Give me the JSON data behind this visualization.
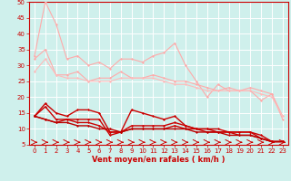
{
  "xlabel": "Vent moyen/en rafales ( km/h )",
  "xlim": [
    -0.5,
    23.5
  ],
  "ylim": [
    5,
    50
  ],
  "yticks": [
    5,
    10,
    15,
    20,
    25,
    30,
    35,
    40,
    45,
    50
  ],
  "xticks": [
    0,
    1,
    2,
    3,
    4,
    5,
    6,
    7,
    8,
    9,
    10,
    11,
    12,
    13,
    14,
    15,
    16,
    17,
    18,
    19,
    20,
    21,
    22,
    23
  ],
  "background_color": "#cff0ec",
  "grid_color": "#ffffff",
  "series": [
    {
      "x": [
        0,
        1,
        2,
        3,
        4,
        5,
        6,
        7,
        8,
        9,
        10,
        11,
        12,
        13,
        14,
        15,
        16,
        17,
        18,
        19,
        20,
        21,
        22,
        23
      ],
      "y": [
        33,
        50,
        43,
        32,
        33,
        30,
        31,
        29,
        32,
        32,
        31,
        33,
        34,
        37,
        30,
        25,
        20,
        24,
        22,
        22,
        22,
        19,
        21,
        13
      ],
      "color": "#ffaaaa",
      "lw": 0.8,
      "marker": "D",
      "ms": 1.5
    },
    {
      "x": [
        0,
        1,
        2,
        3,
        4,
        5,
        6,
        7,
        8,
        9,
        10,
        11,
        12,
        13,
        14,
        15,
        16,
        17,
        18,
        19,
        20,
        21,
        22,
        23
      ],
      "y": [
        32,
        35,
        27,
        27,
        28,
        25,
        26,
        26,
        28,
        26,
        26,
        27,
        26,
        25,
        25,
        24,
        23,
        22,
        23,
        22,
        23,
        22,
        21,
        14
      ],
      "color": "#ffaaaa",
      "lw": 0.8,
      "marker": "D",
      "ms": 1.5
    },
    {
      "x": [
        0,
        1,
        2,
        3,
        4,
        5,
        6,
        7,
        8,
        9,
        10,
        11,
        12,
        13,
        14,
        15,
        16,
        17,
        18,
        19,
        20,
        21,
        22,
        23
      ],
      "y": [
        28,
        32,
        27,
        26,
        26,
        25,
        25,
        25,
        26,
        26,
        26,
        26,
        25,
        24,
        24,
        23,
        22,
        22,
        22,
        22,
        22,
        21,
        20,
        14
      ],
      "color": "#ffbbbb",
      "lw": 0.8,
      "marker": "D",
      "ms": 1.5
    },
    {
      "x": [
        0,
        1,
        2,
        3,
        4,
        5,
        6,
        7,
        8,
        9,
        10,
        11,
        12,
        13,
        14,
        15,
        16,
        17,
        18,
        19,
        20,
        21,
        22,
        23
      ],
      "y": [
        14,
        18,
        15,
        14,
        16,
        16,
        15,
        9,
        9,
        16,
        15,
        14,
        13,
        14,
        11,
        10,
        10,
        10,
        9,
        9,
        9,
        8,
        6,
        6
      ],
      "color": "#cc0000",
      "lw": 1.0,
      "marker": "D",
      "ms": 1.5
    },
    {
      "x": [
        0,
        1,
        2,
        3,
        4,
        5,
        6,
        7,
        8,
        9,
        10,
        11,
        12,
        13,
        14,
        15,
        16,
        17,
        18,
        19,
        20,
        21,
        22,
        23
      ],
      "y": [
        14,
        17,
        13,
        13,
        13,
        13,
        13,
        8,
        9,
        11,
        11,
        11,
        11,
        12,
        11,
        10,
        10,
        9,
        9,
        9,
        9,
        7,
        6,
        6
      ],
      "color": "#cc0000",
      "lw": 1.0,
      "marker": "D",
      "ms": 1.5
    },
    {
      "x": [
        0,
        1,
        2,
        3,
        4,
        5,
        6,
        7,
        8,
        9,
        10,
        11,
        12,
        13,
        14,
        15,
        16,
        17,
        18,
        19,
        20,
        21,
        22,
        23
      ],
      "y": [
        14,
        13,
        12,
        13,
        12,
        12,
        11,
        9,
        9,
        10,
        10,
        10,
        10,
        11,
        10,
        10,
        9,
        9,
        9,
        8,
        8,
        7,
        6,
        6
      ],
      "color": "#cc0000",
      "lw": 1.0,
      "marker": "D",
      "ms": 1.5
    },
    {
      "x": [
        0,
        1,
        2,
        3,
        4,
        5,
        6,
        7,
        8,
        9,
        10,
        11,
        12,
        13,
        14,
        15,
        16,
        17,
        18,
        19,
        20,
        21,
        22,
        23
      ],
      "y": [
        14,
        13,
        12,
        12,
        11,
        11,
        10,
        10,
        9,
        10,
        10,
        10,
        10,
        10,
        10,
        9,
        9,
        9,
        8,
        8,
        8,
        7,
        6,
        6
      ],
      "color": "#bb0000",
      "lw": 1.0,
      "marker": "D",
      "ms": 1.5
    }
  ],
  "arrows": {
    "x": [
      0,
      1,
      2,
      3,
      4,
      5,
      6,
      7,
      8,
      9,
      10,
      11,
      12,
      13,
      14,
      15,
      16,
      17,
      18,
      19,
      20,
      21,
      22,
      23
    ],
    "y": 5.8,
    "color": "#cc0000"
  },
  "tick_color": "#cc0000",
  "tick_fontsize": 5.0,
  "xlabel_fontsize": 6.0,
  "xlabel_color": "#cc0000",
  "spine_color": "#cc0000"
}
